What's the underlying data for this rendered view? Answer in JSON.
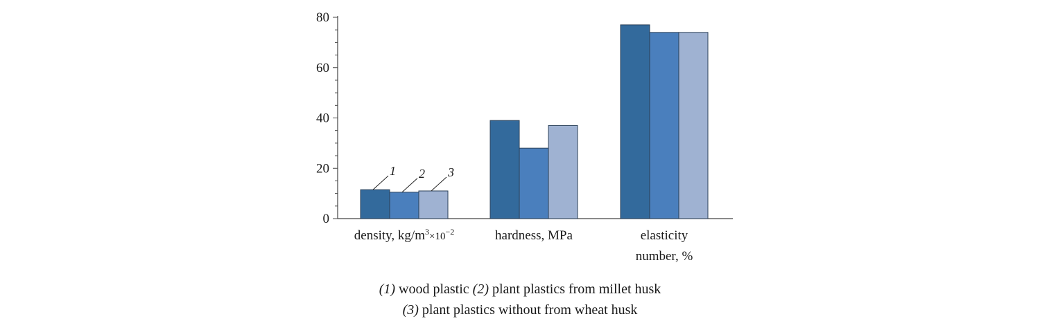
{
  "chart_data": {
    "type": "bar",
    "categories": [
      {
        "line1": "density, kg/m",
        "sup1": "3",
        "mid": "×10",
        "sup2": "−2",
        "line2": ""
      },
      {
        "line1": "hardness, MPa",
        "line2": ""
      },
      {
        "line1": "elasticity",
        "line2": "number, %"
      }
    ],
    "series": [
      {
        "name": "1",
        "values": [
          11.5,
          39,
          77
        ]
      },
      {
        "name": "2",
        "values": [
          10.5,
          28,
          74
        ]
      },
      {
        "name": "3",
        "values": [
          11,
          37,
          74
        ]
      }
    ],
    "ylim": [
      0,
      80
    ],
    "yticks": [
      "0",
      "20",
      "40",
      "60",
      "80"
    ],
    "colors": [
      "#336a9c",
      "#4a7fbd",
      "#9fb2d2"
    ],
    "grid": false,
    "legend": "numbered callouts on first group"
  },
  "caption": {
    "line1": [
      {
        "text": "(1)",
        "italic": true
      },
      {
        "text": " wood plastic ",
        "italic": false
      },
      {
        "text": "(2)",
        "italic": true
      },
      {
        "text": " plant plastics from millet husk",
        "italic": false
      }
    ],
    "line2": [
      {
        "text": "(3)",
        "italic": true
      },
      {
        "text": " plant plastics without from wheat husk",
        "italic": false
      }
    ]
  }
}
